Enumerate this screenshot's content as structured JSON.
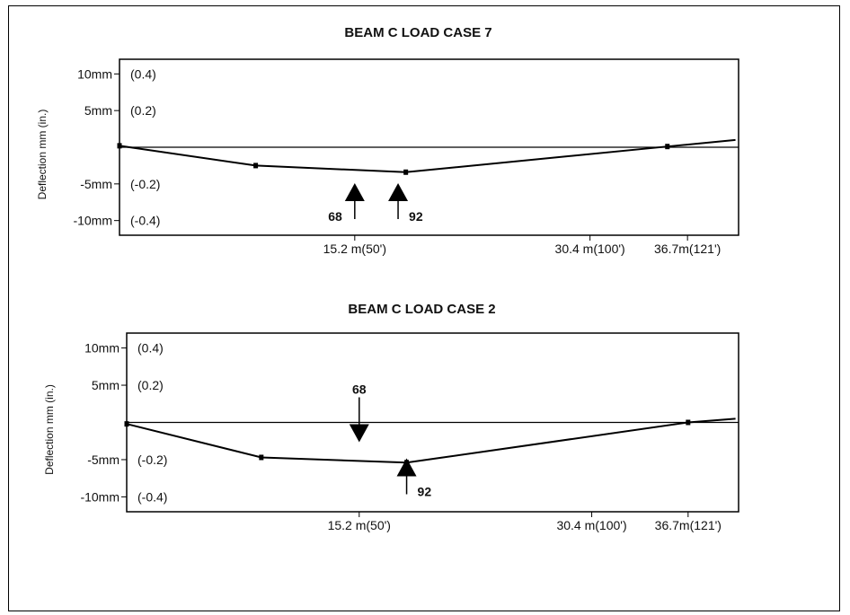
{
  "chart_data": [
    {
      "type": "line",
      "title": "BEAM C LOAD CASE 7",
      "ylabel": "Deflection mm (in.)",
      "xlabel": "",
      "ylim": [
        -12,
        12
      ],
      "xlim": [
        0,
        40
      ],
      "y_ticks": [
        {
          "value": 10,
          "mm": "10mm",
          "in": "(0.4)"
        },
        {
          "value": 5,
          "mm": "5mm",
          "in": "(0.2)"
        },
        {
          "value": -5,
          "mm": "-5mm",
          "in": "(-0.2)"
        },
        {
          "value": -10,
          "mm": "-10mm",
          "in": "(-0.4)"
        }
      ],
      "x_ticks": [
        {
          "value": 15.2,
          "label": "15.2 m(50')"
        },
        {
          "value": 30.4,
          "label": "30.4 m(100')"
        },
        {
          "value": 36.7,
          "label": "36.7m(121')"
        }
      ],
      "series": [
        {
          "x": [
            0,
            8.8,
            18.5,
            35.4,
            39.8
          ],
          "y": [
            0.2,
            -2.5,
            -3.4,
            0.1,
            1.0
          ]
        }
      ],
      "annotations": [
        {
          "label": "68",
          "x": 15.2,
          "direction": "up"
        },
        {
          "label": "92",
          "x": 18.0,
          "direction": "up"
        }
      ]
    },
    {
      "type": "line",
      "title": "BEAM C LOAD CASE 2",
      "ylabel": "Deflection mm (in.)",
      "xlabel": "",
      "ylim": [
        -12,
        12
      ],
      "xlim": [
        0,
        40
      ],
      "y_ticks": [
        {
          "value": 10,
          "mm": "10mm",
          "in": "(0.4)"
        },
        {
          "value": 5,
          "mm": "5mm",
          "in": "(0.2)"
        },
        {
          "value": -5,
          "mm": "-5mm",
          "in": "(-0.2)"
        },
        {
          "value": -10,
          "mm": "-10mm",
          "in": "(-0.4)"
        }
      ],
      "x_ticks": [
        {
          "value": 15.2,
          "label": "15.2 m(50')"
        },
        {
          "value": 30.4,
          "label": "30.4 m(100')"
        },
        {
          "value": 36.7,
          "label": "36.7m(121')"
        }
      ],
      "series": [
        {
          "x": [
            0,
            8.8,
            18.3,
            36.7,
            39.8
          ],
          "y": [
            -0.2,
            -4.7,
            -5.4,
            0.0,
            0.5
          ]
        }
      ],
      "annotations": [
        {
          "label": "68",
          "x": 15.2,
          "direction": "down"
        },
        {
          "label": "92",
          "x": 18.3,
          "direction": "up"
        }
      ]
    }
  ]
}
